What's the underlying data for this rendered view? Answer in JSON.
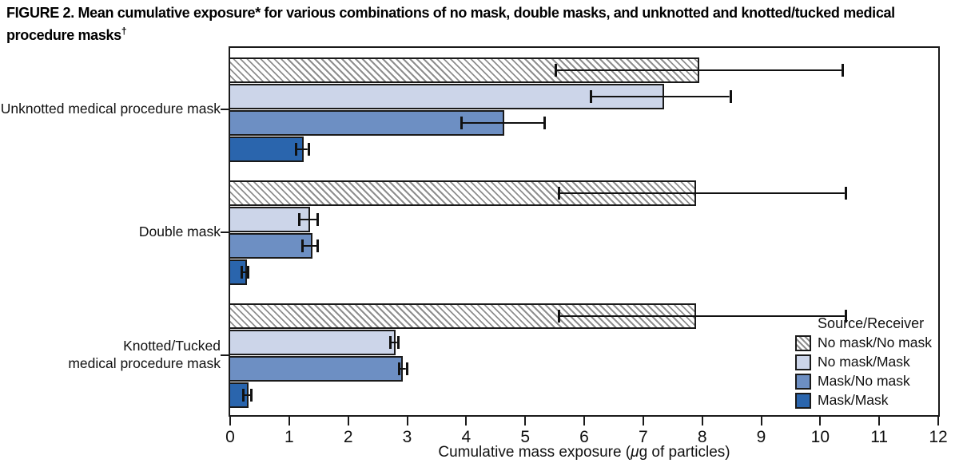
{
  "figure": {
    "title": "FIGURE 2. Mean cumulative exposure* for various combinations of no mask, double masks, and unknotted and knotted/tucked medical procedure masks",
    "title_superscript": "†"
  },
  "colors": {
    "ink": "#1a1a1a",
    "hatch_stripe": "#8e8e8e",
    "light_blue": "#ccd5e9",
    "medium_blue": "#6d8fc3",
    "dark_blue": "#2a65ad"
  },
  "chart_data": {
    "type": "bar",
    "orientation": "horizontal",
    "title": "Mean cumulative exposure for various combinations of no mask, double masks, and unknotted and knotted/tucked medical procedure masks",
    "xlabel": "Cumulative mass exposure (μg of particles)",
    "xlabel_parts": {
      "pre": "Cumulative mass exposure (",
      "mu": "μ",
      "post": "g of particles)"
    },
    "xlim": [
      0,
      12
    ],
    "xticks": [
      0,
      1,
      2,
      3,
      4,
      5,
      6,
      7,
      8,
      9,
      10,
      11,
      12
    ],
    "grid": false,
    "categories": [
      "Unknotted medical procedure mask",
      "Double mask",
      "Knotted/Tucked\nmedical procedure mask"
    ],
    "legend": {
      "title": "Source/Receiver",
      "position": "inside bottom-right"
    },
    "series": [
      {
        "name": "No mask/No mask",
        "style": "hatched",
        "fill": "#ffffff",
        "values": [
          7.95,
          7.9,
          7.9
        ],
        "error_low": [
          5.5,
          5.55,
          5.55
        ],
        "error_high": [
          10.4,
          10.45,
          10.45
        ]
      },
      {
        "name": "No mask/Mask",
        "style": "solid",
        "fill": "#ccd5e9",
        "values": [
          7.35,
          1.35,
          2.8
        ],
        "error_low": [
          6.1,
          1.15,
          2.7
        ],
        "error_high": [
          8.5,
          1.5,
          2.87
        ]
      },
      {
        "name": "Mask/No mask",
        "style": "solid",
        "fill": "#6d8fc3",
        "values": [
          4.65,
          1.4,
          2.93
        ],
        "error_low": [
          3.9,
          1.2,
          2.85
        ],
        "error_high": [
          5.35,
          1.5,
          3.02
        ]
      },
      {
        "name": "Mask/Mask",
        "style": "solid",
        "fill": "#2a65ad",
        "values": [
          1.25,
          0.28,
          0.31
        ],
        "error_low": [
          1.1,
          0.18,
          0.2
        ],
        "error_high": [
          1.35,
          0.33,
          0.38
        ]
      }
    ]
  }
}
